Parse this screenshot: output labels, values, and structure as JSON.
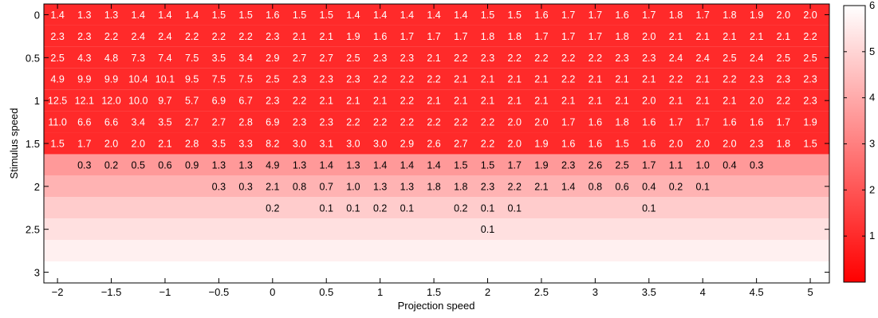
{
  "chart_data": {
    "type": "heatmap",
    "xlabel": "Projection speed",
    "ylabel": "Stimulus speed",
    "x_ticks": [
      "−2",
      "−1.5",
      "−1",
      "−0.5",
      "0",
      "0.5",
      "1",
      "1.5",
      "2",
      "2.5",
      "3",
      "3.5",
      "4",
      "4.5",
      "5"
    ],
    "y_ticks": [
      "0",
      "0.5",
      "1",
      "1.5",
      "2",
      "2.5",
      "3"
    ],
    "colorbar": {
      "ticks": [
        "1",
        "2",
        "3",
        "4",
        "5",
        "6"
      ],
      "range": [
        0,
        6
      ]
    },
    "colormap": {
      "low": "#ff0000",
      "high": "#ffffff"
    },
    "x": [
      -2,
      -1.75,
      -1.5,
      -1.25,
      -1,
      -0.75,
      -0.5,
      -0.25,
      0,
      0.25,
      0.5,
      0.75,
      1,
      1.25,
      1.5,
      1.75,
      2,
      2.25,
      2.5,
      2.75,
      3,
      3.25,
      3.5,
      3.75,
      4,
      4.25,
      4.5,
      4.75,
      5
    ],
    "y": [
      0,
      0.25,
      0.5,
      0.75,
      1,
      1.25,
      1.5,
      1.75,
      2,
      2.25,
      2.5,
      2.75,
      3
    ],
    "values": [
      [
        "1.4",
        "1.3",
        "1.3",
        "1.4",
        "1.4",
        "1.4",
        "1.5",
        "1.5",
        "1.6",
        "1.5",
        "1.5",
        "1.4",
        "1.4",
        "1.4",
        "1.4",
        "1.4",
        "1.5",
        "1.5",
        "1.6",
        "1.7",
        "1.7",
        "1.6",
        "1.7",
        "1.8",
        "1.7",
        "1.8",
        "1.9",
        "2.0",
        "2.0"
      ],
      [
        "2.3",
        "2.3",
        "2.2",
        "2.4",
        "2.4",
        "2.2",
        "2.2",
        "2.2",
        "2.3",
        "2.1",
        "2.1",
        "1.9",
        "1.6",
        "1.7",
        "1.7",
        "1.7",
        "1.8",
        "1.8",
        "1.7",
        "1.7",
        "1.7",
        "1.8",
        "2.0",
        "2.1",
        "2.1",
        "2.1",
        "2.1",
        "2.1",
        "2.2"
      ],
      [
        "2.5",
        "4.3",
        "4.8",
        "7.3",
        "7.4",
        "7.5",
        "3.5",
        "3.4",
        "2.9",
        "2.7",
        "2.7",
        "2.5",
        "2.3",
        "2.3",
        "2.1",
        "2.2",
        "2.3",
        "2.2",
        "2.2",
        "2.2",
        "2.2",
        "2.3",
        "2.3",
        "2.4",
        "2.4",
        "2.5",
        "2.4",
        "2.5",
        "2.5"
      ],
      [
        "4.9",
        "9.9",
        "9.9",
        "10.4",
        "10.1",
        "9.5",
        "7.5",
        "7.5",
        "2.5",
        "2.3",
        "2.3",
        "2.3",
        "2.2",
        "2.2",
        "2.2",
        "2.1",
        "2.1",
        "2.1",
        "2.1",
        "2.2",
        "2.1",
        "2.1",
        "2.1",
        "2.2",
        "2.1",
        "2.2",
        "2.3",
        "2.3",
        "2.3"
      ],
      [
        "12.5",
        "12.1",
        "12.0",
        "10.0",
        "9.7",
        "5.7",
        "6.9",
        "6.7",
        "2.3",
        "2.2",
        "2.1",
        "2.1",
        "2.1",
        "2.2",
        "2.1",
        "2.1",
        "2.1",
        "2.1",
        "2.1",
        "2.1",
        "2.1",
        "2.1",
        "2.0",
        "2.1",
        "2.1",
        "2.1",
        "2.0",
        "2.2",
        "2.3"
      ],
      [
        "11.0",
        "6.6",
        "6.6",
        "3.4",
        "3.5",
        "2.7",
        "2.7",
        "2.8",
        "6.9",
        "2.3",
        "2.3",
        "2.2",
        "2.2",
        "2.2",
        "2.2",
        "2.2",
        "2.2",
        "2.0",
        "2.0",
        "1.7",
        "1.6",
        "1.8",
        "1.6",
        "1.7",
        "1.7",
        "1.6",
        "1.6",
        "1.7",
        "1.9"
      ],
      [
        "1.5",
        "1.7",
        "2.0",
        "2.0",
        "2.1",
        "2.8",
        "3.5",
        "3.3",
        "8.2",
        "3.0",
        "3.1",
        "3.0",
        "3.0",
        "2.9",
        "2.6",
        "2.7",
        "2.2",
        "2.0",
        "1.9",
        "1.6",
        "1.6",
        "1.5",
        "1.6",
        "2.0",
        "2.0",
        "2.0",
        "2.3",
        "1.8",
        "1.5"
      ],
      [
        "",
        "0.3",
        "0.2",
        "0.5",
        "0.6",
        "0.9",
        "1.3",
        "1.3",
        "4.9",
        "1.3",
        "1.4",
        "1.3",
        "1.4",
        "1.4",
        "1.4",
        "1.5",
        "1.5",
        "1.7",
        "1.9",
        "2.3",
        "2.6",
        "2.5",
        "1.7",
        "1.1",
        "1.0",
        "0.4",
        "0.3",
        "",
        ""
      ],
      [
        "",
        "",
        "",
        "",
        "",
        "",
        "0.3",
        "0.3",
        "2.1",
        "0.8",
        "0.7",
        "1.0",
        "1.3",
        "1.3",
        "1.8",
        "1.8",
        "2.3",
        "2.2",
        "2.1",
        "1.4",
        "0.8",
        "0.6",
        "0.4",
        "0.2",
        "0.1",
        "",
        "",
        "",
        ""
      ],
      [
        "",
        "",
        "",
        "",
        "",
        "",
        "",
        "",
        "0.2",
        "",
        "0.1",
        "0.1",
        "0.2",
        "0.1",
        "",
        "0.2",
        "0.1",
        "0.1",
        "",
        "",
        "",
        "",
        "0.1",
        "",
        "",
        "",
        "",
        "",
        ""
      ],
      [
        "",
        "",
        "",
        "",
        "",
        "",
        "",
        "",
        "",
        "",
        "",
        "",
        "",
        "",
        "",
        "",
        "0.1",
        "",
        "",
        "",
        "",
        "",
        "",
        "",
        "",
        "",
        "",
        "",
        ""
      ],
      [
        "",
        "",
        "",
        "",
        "",
        "",
        "",
        "",
        "",
        "",
        "",
        "",
        "",
        "",
        "",
        "",
        "",
        "",
        "",
        "",
        "",
        "",
        "",
        "",
        "",
        "",
        "",
        "",
        ""
      ],
      [
        "",
        "",
        "",
        "",
        "",
        "",
        "",
        "",
        "",
        "",
        "",
        "",
        "",
        "",
        "",
        "",
        "",
        "",
        "",
        "",
        "",
        "",
        "",
        "",
        "",
        "",
        "",
        "",
        ""
      ]
    ],
    "row_colors": [
      "#ff2a2a",
      "#ff2a2a",
      "#ff2a2a",
      "#ff2a2a",
      "#ff2a2a",
      "#ff2a2a",
      "#ff2a2a",
      "#ff9999",
      "#ffb3b3",
      "#ffcccc",
      "#ffe0e0",
      "#fff0f0",
      "#ffffff"
    ]
  }
}
